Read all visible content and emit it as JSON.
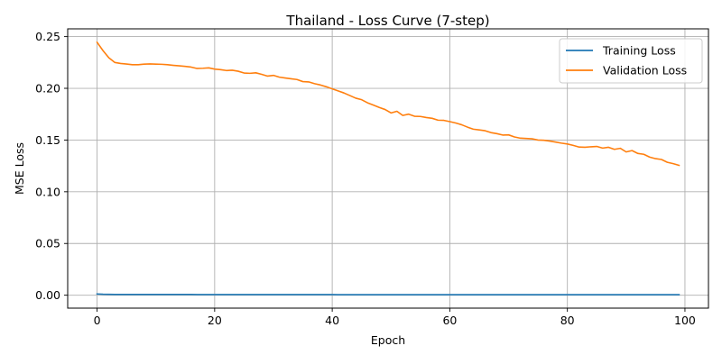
{
  "chart_data": {
    "type": "line",
    "title": "Thailand - Loss Curve (7-step)",
    "xlabel": "Epoch",
    "ylabel": "MSE Loss",
    "xlim": [
      -5,
      104
    ],
    "ylim": [
      -0.0125,
      0.2575
    ],
    "xticks": [
      0,
      20,
      40,
      60,
      80,
      100
    ],
    "yticks": [
      0.0,
      0.05,
      0.1,
      0.15,
      0.2,
      0.25
    ],
    "xtick_labels": [
      "0",
      "20",
      "40",
      "60",
      "80",
      "100"
    ],
    "ytick_labels": [
      "0.00",
      "0.05",
      "0.10",
      "0.15",
      "0.20",
      "0.25"
    ],
    "grid": true,
    "legend_position": "upper-right",
    "series": [
      {
        "name": "Training Loss",
        "color": "#1f77b4",
        "x_start": 0,
        "values": [
          0.0012,
          0.0009,
          0.0008,
          0.0007,
          0.0007,
          0.0007,
          0.0007,
          0.0007,
          0.0007,
          0.0007,
          0.0007,
          0.0007,
          0.0007,
          0.0007,
          0.0007,
          0.0007,
          0.0007,
          0.0006,
          0.0006,
          0.0006,
          0.0006,
          0.0006,
          0.0006,
          0.0006,
          0.0006,
          0.0006,
          0.0006,
          0.0006,
          0.0006,
          0.0006,
          0.0006,
          0.0006,
          0.0006,
          0.0006,
          0.0006,
          0.0006,
          0.0006,
          0.0006,
          0.0006,
          0.0006,
          0.0006,
          0.0005,
          0.0005,
          0.0005,
          0.0005,
          0.0005,
          0.0005,
          0.0005,
          0.0005,
          0.0005,
          0.0005,
          0.0005,
          0.0005,
          0.0005,
          0.0005,
          0.0005,
          0.0005,
          0.0005,
          0.0005,
          0.0005,
          0.0005,
          0.0005,
          0.0005,
          0.0005,
          0.0005,
          0.0005,
          0.0005,
          0.0005,
          0.0005,
          0.0005,
          0.0005,
          0.0005,
          0.0005,
          0.0005,
          0.0005,
          0.0005,
          0.0005,
          0.0005,
          0.0005,
          0.0005,
          0.0005,
          0.0005,
          0.0005,
          0.0005,
          0.0005,
          0.0005,
          0.0005,
          0.0005,
          0.0005,
          0.0005,
          0.0005,
          0.0005,
          0.0005,
          0.0005,
          0.0005,
          0.0005,
          0.0005,
          0.0005,
          0.0005,
          0.0005
        ]
      },
      {
        "name": "Validation Loss",
        "color": "#ff7f0e",
        "x_start": 0,
        "values": [
          0.2445,
          0.2365,
          0.2295,
          0.225,
          0.224,
          0.2235,
          0.2228,
          0.2228,
          0.2234,
          0.2236,
          0.2234,
          0.2232,
          0.2228,
          0.2222,
          0.2217,
          0.2212,
          0.2205,
          0.2192,
          0.2194,
          0.2198,
          0.2186,
          0.218,
          0.2172,
          0.2175,
          0.2165,
          0.2148,
          0.2145,
          0.215,
          0.2135,
          0.2118,
          0.2125,
          0.2108,
          0.21,
          0.2092,
          0.2085,
          0.2065,
          0.2062,
          0.2045,
          0.2032,
          0.2015,
          0.1995,
          0.1975,
          0.1955,
          0.193,
          0.1905,
          0.189,
          0.186,
          0.1838,
          0.1815,
          0.1795,
          0.1762,
          0.1778,
          0.1738,
          0.175,
          0.173,
          0.1728,
          0.1718,
          0.171,
          0.1692,
          0.169,
          0.1678,
          0.1665,
          0.1648,
          0.1625,
          0.1605,
          0.1598,
          0.159,
          0.1572,
          0.1562,
          0.1548,
          0.155,
          0.153,
          0.1518,
          0.1515,
          0.1512,
          0.15,
          0.1498,
          0.149,
          0.148,
          0.147,
          0.1462,
          0.1448,
          0.1432,
          0.143,
          0.1435,
          0.1438,
          0.1422,
          0.143,
          0.141,
          0.142,
          0.1385,
          0.1398,
          0.137,
          0.1362,
          0.1335,
          0.132,
          0.1312,
          0.1285,
          0.1272,
          0.1255
        ]
      }
    ]
  }
}
